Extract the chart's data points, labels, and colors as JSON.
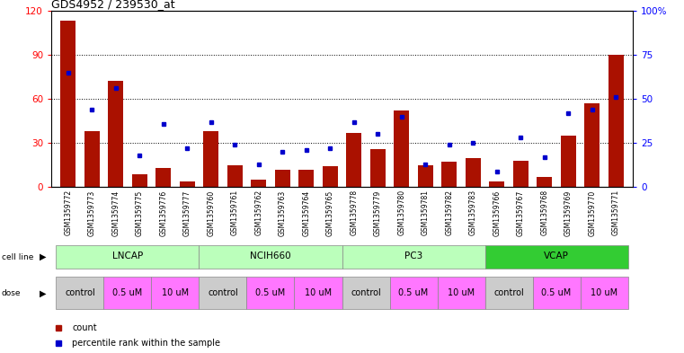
{
  "title": "GDS4952 / 239530_at",
  "samples": [
    "GSM1359772",
    "GSM1359773",
    "GSM1359774",
    "GSM1359775",
    "GSM1359776",
    "GSM1359777",
    "GSM1359760",
    "GSM1359761",
    "GSM1359762",
    "GSM1359763",
    "GSM1359764",
    "GSM1359765",
    "GSM1359778",
    "GSM1359779",
    "GSM1359780",
    "GSM1359781",
    "GSM1359782",
    "GSM1359783",
    "GSM1359766",
    "GSM1359767",
    "GSM1359768",
    "GSM1359769",
    "GSM1359770",
    "GSM1359771"
  ],
  "counts": [
    113,
    38,
    72,
    9,
    13,
    4,
    38,
    15,
    5,
    12,
    12,
    14,
    37,
    26,
    52,
    15,
    17,
    20,
    4,
    18,
    7,
    35,
    57,
    90
  ],
  "percentiles": [
    65,
    44,
    56,
    18,
    36,
    22,
    37,
    24,
    13,
    20,
    21,
    22,
    37,
    30,
    40,
    13,
    24,
    25,
    9,
    28,
    17,
    42,
    44,
    51
  ],
  "cell_lines": [
    {
      "name": "LNCAP",
      "start": 0,
      "end": 6,
      "color_light": "#CCFFCC",
      "color_dark": "#CCFFCC"
    },
    {
      "name": "NCIH660",
      "start": 6,
      "end": 12,
      "color_light": "#CCFFCC",
      "color_dark": "#CCFFCC"
    },
    {
      "name": "PC3",
      "start": 12,
      "end": 18,
      "color_light": "#CCFFCC",
      "color_dark": "#CCFFCC"
    },
    {
      "name": "VCAP",
      "start": 18,
      "end": 24,
      "color_light": "#44CC44",
      "color_dark": "#44CC44"
    }
  ],
  "doses": [
    {
      "name": "control",
      "start": 0,
      "end": 2,
      "color": "#CCCCCC"
    },
    {
      "name": "0.5 uM",
      "start": 2,
      "end": 4,
      "color": "#FF88FF"
    },
    {
      "name": "10 uM",
      "start": 4,
      "end": 6,
      "color": "#FF88FF"
    },
    {
      "name": "control",
      "start": 6,
      "end": 8,
      "color": "#CCCCCC"
    },
    {
      "name": "0.5 uM",
      "start": 8,
      "end": 10,
      "color": "#FF88FF"
    },
    {
      "name": "10 uM",
      "start": 10,
      "end": 12,
      "color": "#FF88FF"
    },
    {
      "name": "control",
      "start": 12,
      "end": 14,
      "color": "#CCCCCC"
    },
    {
      "name": "0.5 uM",
      "start": 14,
      "end": 16,
      "color": "#FF88FF"
    },
    {
      "name": "10 uM",
      "start": 16,
      "end": 18,
      "color": "#FF88FF"
    },
    {
      "name": "control",
      "start": 18,
      "end": 20,
      "color": "#CCCCCC"
    },
    {
      "name": "0.5 uM",
      "start": 20,
      "end": 22,
      "color": "#FF88FF"
    },
    {
      "name": "10 uM",
      "start": 22,
      "end": 24,
      "color": "#FF88FF"
    }
  ],
  "bar_color": "#AA1100",
  "dot_color": "#0000CC",
  "left_ylim": [
    0,
    120
  ],
  "right_ylim": [
    0,
    100
  ],
  "left_yticks": [
    0,
    30,
    60,
    90,
    120
  ],
  "right_yticks": [
    0,
    25,
    50,
    75,
    100
  ],
  "right_yticklabels": [
    "0",
    "25",
    "50",
    "75",
    "100%"
  ],
  "grid_values": [
    30,
    60,
    90
  ],
  "bar_width": 0.65,
  "n": 24
}
